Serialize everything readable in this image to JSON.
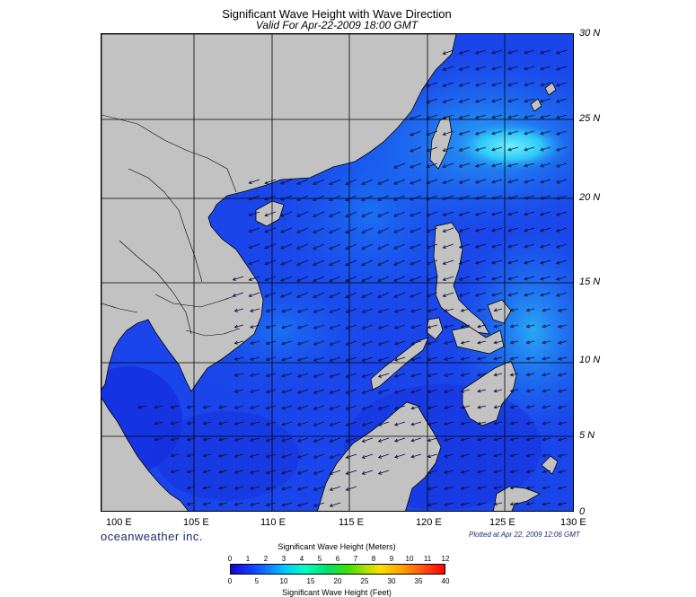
{
  "header": {
    "title": "Significant Wave Height with Wave Direction",
    "subtitle": "Valid For Apr-22-2009 18:00 GMT"
  },
  "map": {
    "latitude_labels": [
      "30 N",
      "25 N",
      "20 N",
      "15 N",
      "10 N",
      "5 N",
      "0"
    ],
    "longitude_labels": [
      "100 E",
      "105 E",
      "110 E",
      "115 E",
      "120 E",
      "125 E",
      "130 E"
    ],
    "colors": {
      "land": "#c2c2c2",
      "sea_low": "#1a2fe6",
      "sea_mid": "#1a6cf2",
      "sea_high": "#25b0f5",
      "sea_peak": "#4fe3ff",
      "grid": "#000000"
    }
  },
  "footer": {
    "brand": "oceanweather inc.",
    "plotted": "Plotted at Apr 22, 2009 12:06 GMT"
  },
  "legend": {
    "meters_title": "Significant Wave Height (Meters)",
    "meters_ticks": [
      "0",
      "1",
      "2",
      "3",
      "4",
      "5",
      "6",
      "7",
      "8",
      "9",
      "10",
      "11",
      "12"
    ],
    "feet_title": "Significant Wave Height (Feet)",
    "feet_ticks": [
      "0",
      "5",
      "10",
      "15",
      "20",
      "25",
      "30",
      "35",
      "40"
    ]
  }
}
